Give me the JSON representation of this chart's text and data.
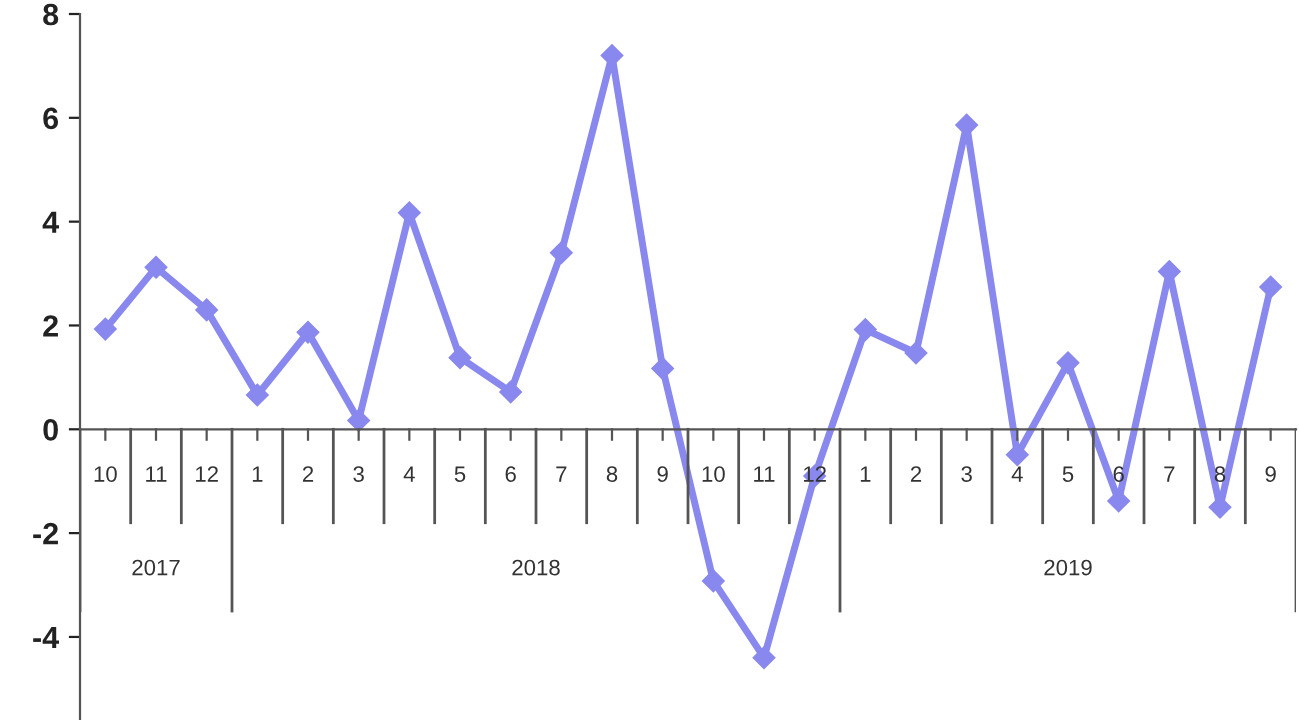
{
  "chart_data": {
    "type": "line",
    "categories": [
      "10",
      "11",
      "12",
      "1",
      "2",
      "3",
      "4",
      "5",
      "6",
      "7",
      "8",
      "9",
      "10",
      "11",
      "12",
      "1",
      "2",
      "3",
      "4",
      "5",
      "6",
      "7",
      "8",
      "9"
    ],
    "series": [
      {
        "color": "#8888ee",
        "values": [
          1.93,
          3.12,
          2.3,
          0.66,
          1.87,
          0.17,
          4.17,
          1.38,
          0.72,
          3.4,
          7.2,
          1.17,
          -2.92,
          -4.4,
          -0.9,
          1.92,
          1.47,
          5.86,
          -0.49,
          1.28,
          -1.38,
          3.04,
          -1.5,
          2.74
        ]
      }
    ],
    "annotations": [
      "2017",
      "2018",
      "2019"
    ],
    "ylim": [
      -5.6,
      8
    ],
    "yticks": [
      -4,
      -2,
      0,
      2,
      4,
      6,
      8
    ],
    "grid": false,
    "legend": false,
    "marker": "diamond",
    "line_style": "solid"
  }
}
